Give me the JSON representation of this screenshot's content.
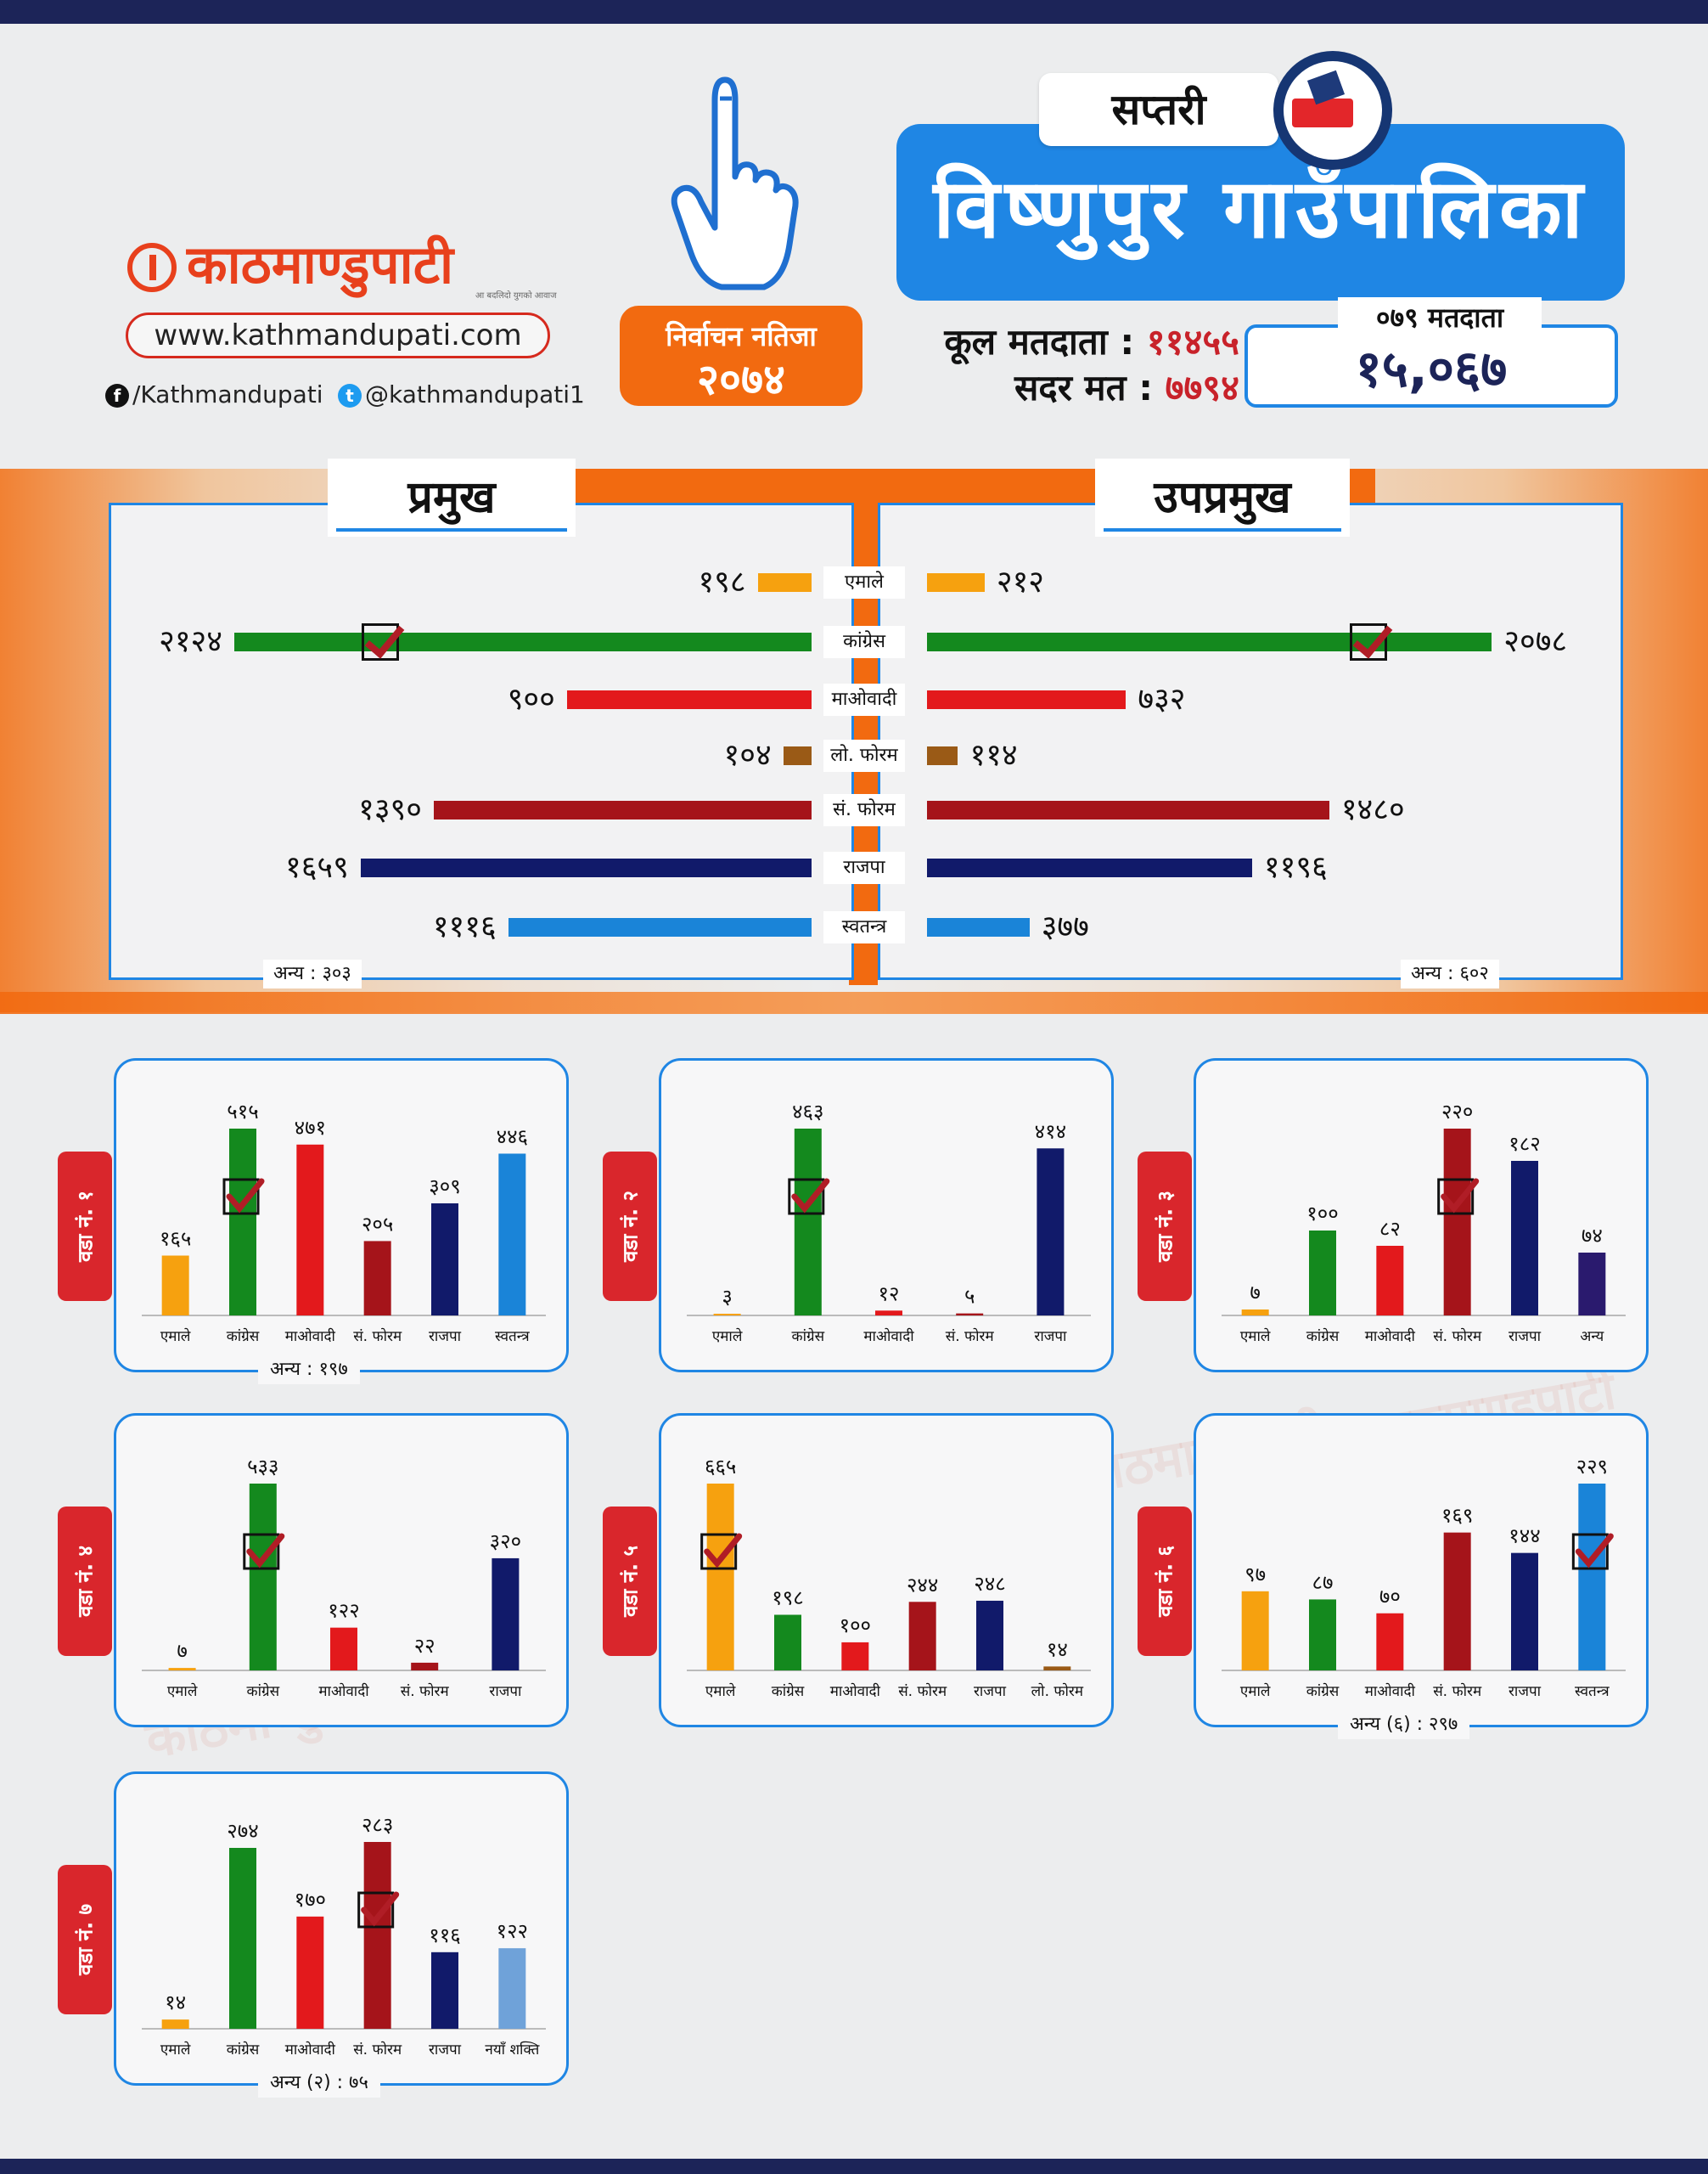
{
  "brand": {
    "name": "काठमाण्डुपाटी",
    "tagline": "आ बदलिदो युगको आवाज",
    "website": "www.kathmandupati.com",
    "facebook": "/Kathmandupati",
    "twitter": "@kathmandupati1"
  },
  "result_badge": {
    "line1": "निर्वाचन नतिजा",
    "line2": "२०७४"
  },
  "district": "सप्तरी",
  "municipality": "विष्णुपुर गाउँपालिका",
  "stats": {
    "total_voters_label": "कूल मतदाता :",
    "total_voters": "११४५५",
    "valid_votes_label": "सदर मत :",
    "valid_votes": "७७९४"
  },
  "voters_079": {
    "label": "०७९ मतदाता",
    "value": "१५,०६७"
  },
  "colors": {
    "एमाले": "#f6a10f",
    "कांग्रेस": "#14891e",
    "माओवादी": "#e3191c",
    "लो. फोरम": "#9a5a16",
    "सं. फोरम": "#a5141a",
    "राजपा": "#111a6a",
    "स्वतन्त्र": "#1a84d8",
    "अन्य": "#2a1a6e",
    "नयाँ शक्ति": "#6fa2d9",
    "accent": "#1f86e4",
    "orange": "#f26a10"
  },
  "chart_data": [
    {
      "type": "bar",
      "title": "प्रमुख",
      "orientation": "horizontal",
      "categories": [
        "एमाले",
        "कांग्रेस",
        "माओवादी",
        "लो. फोरम",
        "सं. फोरम",
        "राजपा",
        "स्वतन्त्र"
      ],
      "values": [
        198,
        2124,
        900,
        104,
        1390,
        1659,
        1116
      ],
      "value_labels": [
        "१९८",
        "२१२४",
        "९००",
        "१०४",
        "१३९०",
        "१६५९",
        "१११६"
      ],
      "winner": "कांग्रेस",
      "other_label": "अन्य : ३०३"
    },
    {
      "type": "bar",
      "title": "उपप्रमुख",
      "orientation": "horizontal",
      "categories": [
        "एमाले",
        "कांग्रेस",
        "माओवादी",
        "लो. फोरम",
        "सं. फोरम",
        "राजपा",
        "स्वतन्त्र"
      ],
      "values": [
        212,
        2078,
        732,
        114,
        1480,
        1196,
        377
      ],
      "value_labels": [
        "२१२",
        "२०७८",
        "७३२",
        "११४",
        "१४८०",
        "११९६",
        "३७७"
      ],
      "winner": "कांग्रेस",
      "other_label": "अन्य : ६०२"
    },
    {
      "type": "bar",
      "title": "वडा नं. १",
      "categories": [
        "एमाले",
        "कांग्रेस",
        "माओवादी",
        "सं. फोरम",
        "राजपा",
        "स्वतन्त्र"
      ],
      "values": [
        165,
        515,
        471,
        205,
        309,
        446
      ],
      "value_labels": [
        "१६५",
        "५१५",
        "४७१",
        "२०५",
        "३०९",
        "४४६"
      ],
      "winner": "कांग्रेस",
      "other_label": "अन्य : १९७"
    },
    {
      "type": "bar",
      "title": "वडा नं. २",
      "categories": [
        "एमाले",
        "कांग्रेस",
        "माओवादी",
        "सं. फोरम",
        "राजपा"
      ],
      "values": [
        3,
        463,
        12,
        5,
        414
      ],
      "value_labels": [
        "३",
        "४६३",
        "१२",
        "५",
        "४१४"
      ],
      "winner": "कांग्रेस",
      "other_label": ""
    },
    {
      "type": "bar",
      "title": "वडा नं. ३",
      "categories": [
        "एमाले",
        "कांग्रेस",
        "माओवादी",
        "सं. फोरम",
        "राजपा",
        "अन्य"
      ],
      "values": [
        7,
        100,
        82,
        220,
        182,
        74
      ],
      "value_labels": [
        "७",
        "१००",
        "८२",
        "२२०",
        "१८२",
        "७४"
      ],
      "winner": "सं. फोरम",
      "other_label": ""
    },
    {
      "type": "bar",
      "title": "वडा नं. ४",
      "categories": [
        "एमाले",
        "कांग्रेस",
        "माओवादी",
        "सं. फोरम",
        "राजपा"
      ],
      "values": [
        7,
        533,
        122,
        22,
        320
      ],
      "value_labels": [
        "७",
        "५३३",
        "१२२",
        "२२",
        "३२०"
      ],
      "winner": "कांग्रेस",
      "other_label": ""
    },
    {
      "type": "bar",
      "title": "वडा नं. ५",
      "categories": [
        "एमाले",
        "कांग्रेस",
        "माओवादी",
        "सं. फोरम",
        "राजपा",
        "लो. फोरम"
      ],
      "values": [
        665,
        198,
        100,
        244,
        248,
        14
      ],
      "value_labels": [
        "६६५",
        "१९८",
        "१००",
        "२४४",
        "२४८",
        "१४"
      ],
      "winner": "एमाले",
      "other_label": ""
    },
    {
      "type": "bar",
      "title": "वडा नं. ६",
      "categories": [
        "एमाले",
        "कांग्रेस",
        "माओवादी",
        "सं. फोरम",
        "राजपा",
        "स्वतन्त्र"
      ],
      "values": [
        97,
        87,
        70,
        169,
        144,
        229
      ],
      "value_labels": [
        "९७",
        "८७",
        "७०",
        "१६९",
        "१४४",
        "२२९"
      ],
      "winner": "स्वतन्त्र",
      "other_label": "अन्य (६) : २९७"
    },
    {
      "type": "bar",
      "title": "वडा नं. ७",
      "categories": [
        "एमाले",
        "कांग्रेस",
        "माओवादी",
        "सं. फोरम",
        "राजपा",
        "नयाँ शक्ति"
      ],
      "values": [
        14,
        274,
        170,
        283,
        116,
        122
      ],
      "value_labels": [
        "१४",
        "२७४",
        "१७०",
        "२८३",
        "११६",
        "१२२"
      ],
      "winner": "सं. फोरम",
      "other_label": "अन्य (२) : ७५"
    }
  ]
}
